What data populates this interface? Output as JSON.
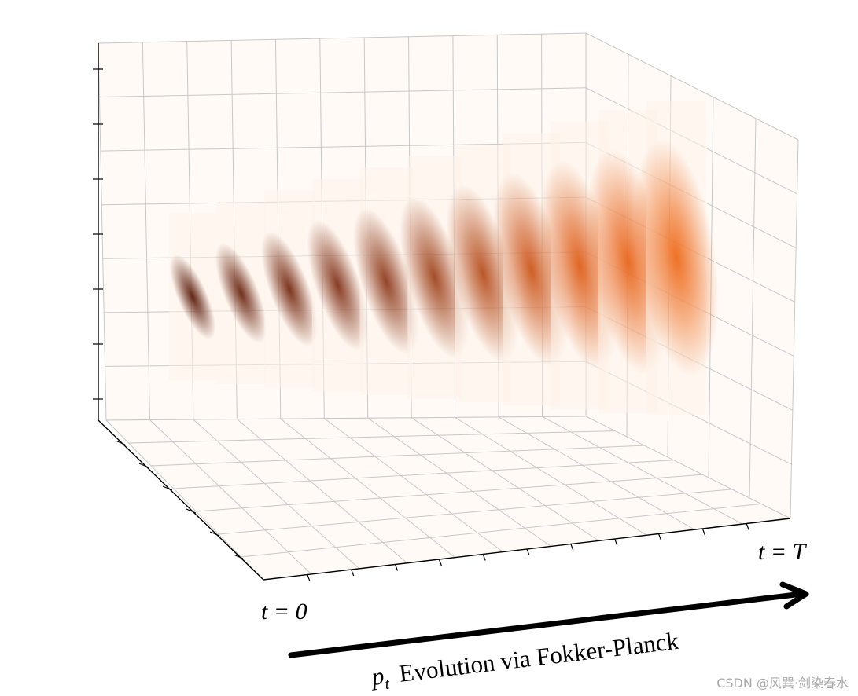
{
  "labels": {
    "t_start": "t = 0",
    "t_end": "t = T"
  },
  "caption": {
    "symbol": "p",
    "subscript": "t",
    "text": "Evolution via Fokker-Planck"
  },
  "watermark": "CSDN @风巽·剑染春水",
  "colors": {
    "grid": "#c8c8c8",
    "axis": "#000000",
    "slice_bg": "#fdf3ea",
    "early_density": "#5a1e0a",
    "late_density": "#ec6a1a"
  },
  "density_slices": [
    {
      "t_index": 0,
      "color": "#5a1a0a",
      "spread": 0.22
    },
    {
      "t_index": 1,
      "color": "#6a2410",
      "spread": 0.3
    },
    {
      "t_index": 2,
      "color": "#762a12",
      "spread": 0.38
    },
    {
      "t_index": 3,
      "color": "#82331a",
      "spread": 0.46
    },
    {
      "t_index": 4,
      "color": "#8e3b1c",
      "spread": 0.54
    },
    {
      "t_index": 5,
      "color": "#a0441e",
      "spread": 0.62
    },
    {
      "t_index": 6,
      "color": "#b64e1e",
      "spread": 0.7
    },
    {
      "t_index": 7,
      "color": "#cc561c",
      "spread": 0.78
    },
    {
      "t_index": 8,
      "color": "#de5e1a",
      "spread": 0.86
    },
    {
      "t_index": 9,
      "color": "#e8641a",
      "spread": 0.94
    },
    {
      "t_index": 10,
      "color": "#ee6a1a",
      "spread": 1.0
    }
  ]
}
